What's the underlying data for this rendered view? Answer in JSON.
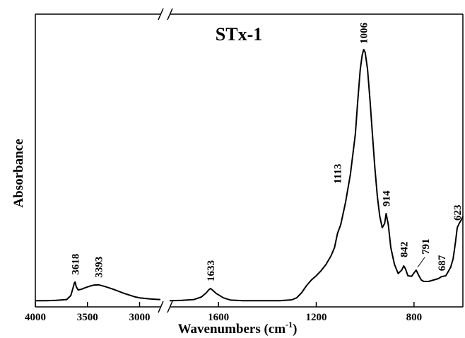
{
  "chart_data": {
    "type": "line",
    "title": "STx-1",
    "xlabel": "Wavenumbers (cm⁻¹)",
    "xlabel_main": "Wavenumbers (cm",
    "xlabel_sup": "-1",
    "xlabel_close": ")",
    "ylabel": "Absorbance",
    "x_axis_reversed": true,
    "x_axis_break": [
      2800,
      1800
    ],
    "xlim": [
      4000,
      600
    ],
    "ylim": [
      0,
      1
    ],
    "grid": false,
    "x_ticks": [
      {
        "value": 4000,
        "label": "4000"
      },
      {
        "value": 3500,
        "label": "3500"
      },
      {
        "value": 3000,
        "label": "3000"
      },
      {
        "value": 1600,
        "label": "1600"
      },
      {
        "value": 1200,
        "label": "1200"
      },
      {
        "value": 800,
        "label": "800"
      }
    ],
    "peaks": [
      {
        "x": 3618,
        "label": "3618"
      },
      {
        "x": 3393,
        "label": "3393"
      },
      {
        "x": 1633,
        "label": "1633"
      },
      {
        "x": 1113,
        "label": "1113"
      },
      {
        "x": 1006,
        "label": "1006"
      },
      {
        "x": 914,
        "label": "914"
      },
      {
        "x": 842,
        "label": "842"
      },
      {
        "x": 791,
        "label": "791"
      },
      {
        "x": 687,
        "label": "687"
      },
      {
        "x": 623,
        "label": "623"
      }
    ],
    "series": [
      {
        "x": [
          4000,
          3900,
          3800,
          3700,
          3660,
          3640,
          3625,
          3618,
          3608,
          3590,
          3560,
          3520,
          3480,
          3440,
          3393,
          3340,
          3290,
          3250,
          3200,
          3150,
          3100,
          3050,
          3000,
          2950,
          2900,
          2850,
          2800,
          1800,
          1750,
          1700,
          1670,
          1650,
          1640,
          1633,
          1625,
          1610,
          1580,
          1550,
          1500,
          1450,
          1400,
          1350,
          1300,
          1280,
          1260,
          1240,
          1220,
          1200,
          1180,
          1160,
          1140,
          1125,
          1113,
          1100,
          1080,
          1060,
          1040,
          1030,
          1020,
          1012,
          1006,
          1000,
          990,
          980,
          970,
          960,
          950,
          940,
          930,
          920,
          914,
          905,
          895,
          880,
          865,
          850,
          842,
          835,
          825,
          810,
          800,
          791,
          780,
          770,
          760,
          740,
          720,
          700,
          687,
          670,
          660,
          650,
          640,
          630,
          623,
          615,
          605,
          600
        ],
        "y": [
          0.012,
          0.012,
          0.013,
          0.016,
          0.03,
          0.055,
          0.075,
          0.078,
          0.062,
          0.05,
          0.052,
          0.058,
          0.063,
          0.067,
          0.068,
          0.063,
          0.057,
          0.052,
          0.045,
          0.038,
          0.032,
          0.026,
          0.022,
          0.02,
          0.018,
          0.017,
          0.016,
          0.012,
          0.013,
          0.016,
          0.025,
          0.04,
          0.05,
          0.055,
          0.05,
          0.038,
          0.022,
          0.014,
          0.012,
          0.012,
          0.012,
          0.012,
          0.015,
          0.022,
          0.04,
          0.065,
          0.085,
          0.1,
          0.118,
          0.14,
          0.17,
          0.2,
          0.25,
          0.28,
          0.36,
          0.46,
          0.6,
          0.72,
          0.83,
          0.88,
          0.9,
          0.89,
          0.83,
          0.72,
          0.6,
          0.48,
          0.38,
          0.31,
          0.27,
          0.285,
          0.32,
          0.28,
          0.2,
          0.14,
          0.108,
          0.12,
          0.135,
          0.125,
          0.1,
          0.098,
          0.11,
          0.12,
          0.1,
          0.085,
          0.08,
          0.08,
          0.085,
          0.09,
          0.097,
          0.1,
          0.115,
          0.13,
          0.16,
          0.22,
          0.27,
          0.285,
          0.3,
          0.31
        ]
      }
    ]
  }
}
